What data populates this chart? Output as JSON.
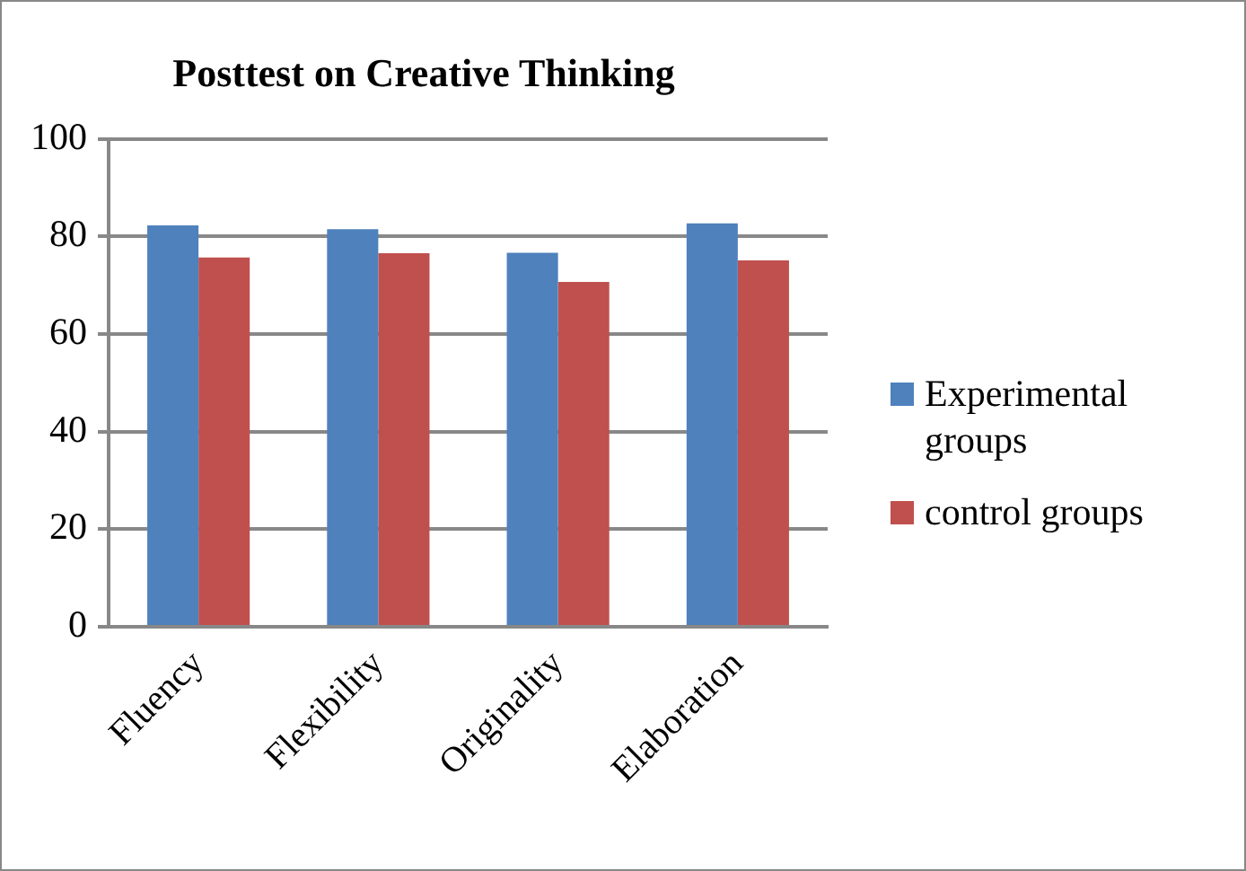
{
  "chart_data": {
    "type": "bar",
    "title": "Posttest on Creative Thinking",
    "categories": [
      "Fluency",
      "Flexibility",
      "Originality",
      "Elaboration"
    ],
    "series": [
      {
        "name": "Experimental groups",
        "color": "#4f81bd",
        "values": [
          82.3,
          81.5,
          76.7,
          82.7
        ]
      },
      {
        "name": "control groups",
        "color": "#c0504d",
        "values": [
          75.7,
          76.6,
          70.7,
          75.1
        ]
      }
    ],
    "ylim": [
      0,
      100
    ],
    "yticks": [
      0,
      20,
      40,
      60,
      80,
      100
    ],
    "grid": "y",
    "legend": "right"
  }
}
